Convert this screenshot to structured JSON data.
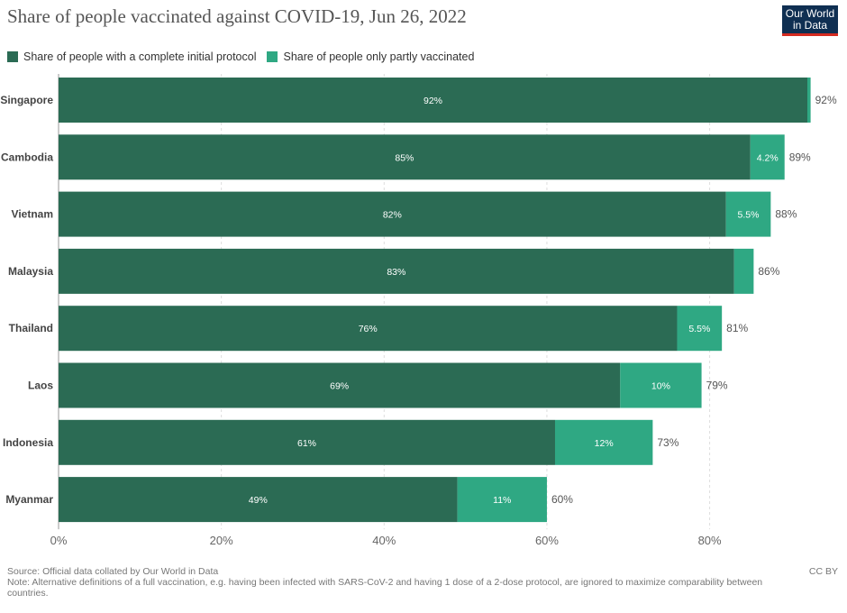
{
  "title": "Share of people vaccinated against COVID-19, Jun 26, 2022",
  "logo": {
    "line1": "Our World",
    "line2": "in Data"
  },
  "legend": [
    {
      "label": "Share of people with a complete initial protocol",
      "color": "#2b6b54"
    },
    {
      "label": "Share of people only partly vaccinated",
      "color": "#2fa883"
    }
  ],
  "footer": {
    "source": "Source: Official data collated by Our World in Data",
    "note": "Note: Alternative definitions of a full vaccination, e.g. having been infected with SARS-CoV-2 and having 1 dose of a 2-dose protocol, are ignored to maximize comparability between countries.",
    "license": "CC BY"
  },
  "chart_data": {
    "type": "bar",
    "orientation": "horizontal",
    "stacked": true,
    "title": "Share of people vaccinated against COVID-19, Jun 26, 2022",
    "categories": [
      "Singapore",
      "Cambodia",
      "Vietnam",
      "Malaysia",
      "Thailand",
      "Laos",
      "Indonesia",
      "Myanmar"
    ],
    "series": [
      {
        "name": "Share of people with a complete initial protocol",
        "color": "#2b6b54",
        "values": [
          92,
          85,
          82,
          83,
          76,
          69,
          61,
          49
        ],
        "labels": [
          "92%",
          "85%",
          "82%",
          "83%",
          "76%",
          "69%",
          "61%",
          "49%"
        ]
      },
      {
        "name": "Share of people only partly vaccinated",
        "color": "#2fa883",
        "values": [
          0.4,
          4.2,
          5.5,
          2.4,
          5.5,
          10,
          12,
          11
        ],
        "labels": [
          "",
          "4.2%",
          "5.5%",
          "",
          "5.5%",
          "10%",
          "12%",
          "11%"
        ]
      }
    ],
    "totals": [
      "92%",
      "89%",
      "88%",
      "86%",
      "81%",
      "79%",
      "73%",
      "60%"
    ],
    "xlim": [
      0,
      92
    ],
    "xticks": [
      0,
      20,
      40,
      60,
      80
    ],
    "xtick_labels": [
      "0%",
      "20%",
      "40%",
      "60%",
      "80%"
    ],
    "grid": true,
    "legend_position": "top-left"
  }
}
